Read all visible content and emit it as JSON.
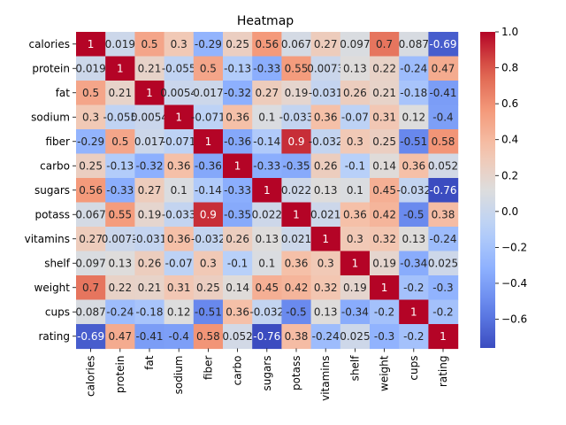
{
  "chart_data": {
    "type": "heatmap",
    "title": "Heatmap",
    "xlabel": "",
    "ylabel": "",
    "labels": [
      "calories",
      "protein",
      "fat",
      "sodium",
      "fiber",
      "carbo",
      "sugars",
      "potass",
      "vitamins",
      "shelf",
      "weight",
      "cups",
      "rating"
    ],
    "display": [
      [
        "1",
        "0.019",
        "0.5",
        "0.3",
        "-0.29",
        "0.25",
        "0.56",
        "0.067",
        "0.27",
        "0.097",
        "0.7",
        "0.087",
        "-0.69"
      ],
      [
        "0.019",
        "1",
        "0.21",
        "-0.055",
        "0.5",
        "-0.13",
        "-0.33",
        "0.55",
        "0.0073",
        "0.13",
        "0.22",
        "-0.24",
        "0.47"
      ],
      [
        "0.5",
        "0.21",
        "1",
        "0.0054",
        "0.017",
        "-0.32",
        "0.27",
        "0.19",
        "-0.031",
        "0.26",
        "0.21",
        "-0.18",
        "-0.41"
      ],
      [
        "0.3",
        "-0.055",
        "0.0054",
        "1",
        "-0.071",
        "0.36",
        "0.1",
        "-0.033",
        "0.36",
        "-0.07",
        "0.31",
        "0.12",
        "-0.4"
      ],
      [
        "-0.29",
        "0.5",
        "0.017",
        "-0.071",
        "1",
        "-0.36",
        "-0.14",
        "0.9",
        "-0.032",
        "0.3",
        "0.25",
        "-0.51",
        "0.58"
      ],
      [
        "0.25",
        "-0.13",
        "-0.32",
        "0.36",
        "-0.36",
        "1",
        "-0.33",
        "-0.35",
        "0.26",
        "-0.1",
        "0.14",
        "0.36",
        "0.052"
      ],
      [
        "0.56",
        "-0.33",
        "0.27",
        "0.1",
        "-0.14",
        "-0.33",
        "1",
        "0.022",
        "0.13",
        "0.1",
        "0.45",
        "-0.032",
        "-0.76"
      ],
      [
        "0.067",
        "0.55",
        "0.19",
        "-0.033",
        "0.9",
        "-0.35",
        "0.022",
        "1",
        "0.021",
        "0.36",
        "0.42",
        "-0.5",
        "0.38"
      ],
      [
        "0.27",
        "0.0073",
        "-0.031",
        "0.36",
        "-0.032",
        "0.26",
        "0.13",
        "0.021",
        "1",
        "0.3",
        "0.32",
        "0.13",
        "-0.24"
      ],
      [
        "0.097",
        "0.13",
        "0.26",
        "-0.07",
        "0.3",
        "-0.1",
        "0.1",
        "0.36",
        "0.3",
        "1",
        "0.19",
        "-0.34",
        "0.025"
      ],
      [
        "0.7",
        "0.22",
        "0.21",
        "0.31",
        "0.25",
        "0.14",
        "0.45",
        "0.42",
        "0.32",
        "0.19",
        "1",
        "-0.2",
        "-0.3"
      ],
      [
        "0.087",
        "-0.24",
        "-0.18",
        "0.12",
        "-0.51",
        "0.36",
        "-0.032",
        "-0.5",
        "0.13",
        "-0.34",
        "-0.2",
        "1",
        "-0.2"
      ],
      [
        "-0.69",
        "0.47",
        "-0.41",
        "-0.4",
        "0.58",
        "0.052",
        "-0.76",
        "0.38",
        "-0.24",
        "0.025",
        "-0.3",
        "-0.2",
        "1"
      ]
    ],
    "colorbar": {
      "vmin": -0.76,
      "vmax": 1.0,
      "ticks": [
        "−0.6",
        "−0.4",
        "−0.2",
        "0.0",
        "0.2",
        "0.4",
        "0.6",
        "0.8",
        "1.0"
      ],
      "tick_values": [
        -0.6,
        -0.4,
        -0.2,
        0.0,
        0.2,
        0.4,
        0.6,
        0.8,
        1.0
      ]
    },
    "colormap": "coolwarm",
    "grid": false,
    "legend": "colorbar-right"
  }
}
